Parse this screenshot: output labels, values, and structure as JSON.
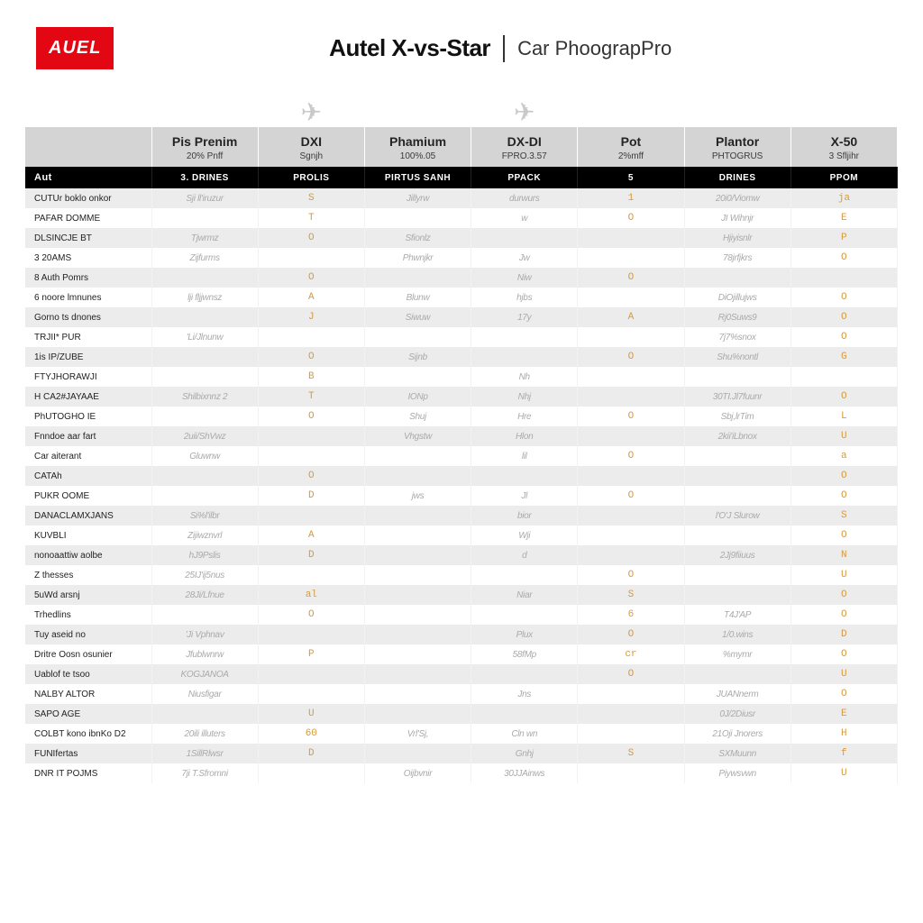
{
  "logo": "AUEL",
  "title_main": "Autel X-vs-Star",
  "title_sub": "Car PhoograpPro",
  "colors": {
    "brand_red": "#e30613",
    "header_gray": "#d4d4d4",
    "black_bar": "#000000",
    "accent_orange": "#d99a3a",
    "row_alt": "#ececec",
    "text_main": "#222222",
    "text_muted": "#888888"
  },
  "table": {
    "drone_icons": [
      "",
      "",
      "✈",
      "",
      "✈",
      "",
      "",
      ""
    ],
    "header1": [
      "",
      "Pis Prenim",
      "DXI",
      "Phamium",
      "DX-DI",
      "Pot",
      "Plantor",
      "X-50"
    ],
    "header2": [
      "",
      "20% Pnff",
      "Sgnjh",
      "100%.05",
      "FPRO.3.57",
      "2%mff",
      "PHTOGRUS",
      "3 Sfljihr"
    ],
    "header3": [
      "Aut",
      "3. DRINES",
      "PROLIS",
      "PIRTUS SANH",
      "PPACK",
      "5",
      "DRINES",
      "PPOM"
    ],
    "rows": [
      {
        "label": "CUTUr boklo onkor",
        "cells": [
          "Sji ll'iruzur",
          "S",
          "Jillyrw",
          "durwurs",
          "1",
          "20i0/Viomw",
          "ja"
        ]
      },
      {
        "label": "PAFAR DOMME",
        "cells": [
          "",
          "T",
          "",
          "w",
          "O",
          "JI Wihnjr",
          "E"
        ]
      },
      {
        "label": "DLSINCJE BT",
        "cells": [
          "Tjwrmz",
          "O",
          "Sfionlz",
          "",
          "",
          "Hjiyisnlr",
          "P"
        ]
      },
      {
        "label": "3 20AMS",
        "cells": [
          "Zijfurms",
          "",
          "Phwnjkr",
          "Jw",
          "",
          "78jrfjkrs",
          "O"
        ]
      },
      {
        "label": "8 Auth Pomrs",
        "cells": [
          "",
          "O",
          "",
          "Niw",
          "O",
          "",
          ""
        ]
      },
      {
        "label": "6 noore lmnunes",
        "cells": [
          "lji fljjwnsz",
          "A",
          "Blunw",
          "hjbs",
          "",
          "DiOjillujws",
          "O"
        ]
      },
      {
        "label": "Gorno ts dnones",
        "cells": [
          "",
          "J",
          "Siwuw",
          "17y",
          "A",
          "Rj0Suws9",
          "O"
        ]
      },
      {
        "label": "TRJII* PUR",
        "cells": [
          "'Li/Jlnunw",
          "",
          "",
          "",
          "",
          "7j7%snox",
          "O"
        ]
      },
      {
        "label": "1is IP/ZUBE",
        "cells": [
          "",
          "O",
          "Sijnb",
          "",
          "O",
          "Shu%nontl",
          "G"
        ]
      },
      {
        "label": "FTYJHORAWJI",
        "cells": [
          "",
          "B",
          "",
          "Nh",
          "",
          "",
          ""
        ]
      },
      {
        "label": "H CA2#JAYAAE",
        "cells": [
          "Shilbixnnz 2",
          "T",
          "IONp",
          "Nhj",
          "",
          "30TI.Jl7fuunr",
          "O"
        ]
      },
      {
        "label": "PhUTOGHO IE",
        "cells": [
          "",
          "O",
          "Shuj",
          "Hre",
          "O",
          "Sbj,lrTim",
          "L"
        ]
      },
      {
        "label": "Fnndoe aar fart",
        "cells": [
          "2uii/ShVwz",
          "",
          "Vhgstw",
          "Hlon",
          "",
          "2kii'iLbnox",
          "U"
        ]
      },
      {
        "label": "Car aiterant",
        "cells": [
          "Gluwnw",
          "",
          "",
          "lil",
          "O",
          "",
          "a"
        ]
      },
      {
        "label": "CATAh",
        "cells": [
          "",
          "O",
          "",
          "",
          "",
          "",
          "O"
        ]
      },
      {
        "label": "PUKR OOME",
        "cells": [
          "",
          "D",
          "jws",
          "Jl",
          "O",
          "",
          "O"
        ]
      },
      {
        "label": "DANACLAMXJANS",
        "cells": [
          "Si%l'ilbr",
          "",
          "",
          "bior",
          "",
          "l'O'J Slurow",
          "S"
        ]
      },
      {
        "label": "KUVBLI",
        "cells": [
          "Zijiwznvrl",
          "A",
          "",
          "Wji",
          "",
          "",
          "O"
        ]
      },
      {
        "label": "nonoaattiw aolbe",
        "cells": [
          "hJ9Pslis",
          "D",
          "",
          "d",
          "",
          "2Jj9fiiuus",
          "N"
        ]
      },
      {
        "label": "Z thesses",
        "cells": [
          "25IJ'ij5nus",
          "",
          "",
          "",
          "O",
          "",
          "U"
        ]
      },
      {
        "label": "5uWd arsnj",
        "cells": [
          "28Ji/Lfnue",
          "al",
          "",
          "Niar",
          "S",
          "",
          "O"
        ]
      },
      {
        "label": "Trhedlins",
        "cells": [
          "",
          "O",
          "",
          "",
          "6",
          "T4J'AP",
          "O"
        ]
      },
      {
        "label": "Tuy aseid no",
        "cells": [
          "'Ji Vphnav",
          "",
          "",
          "Plux",
          "O",
          "1/0.wins",
          "D"
        ]
      },
      {
        "label": "Dritre Oosn osunier",
        "cells": [
          "Jfublwnrw",
          "P",
          "",
          "58fMp",
          "cr",
          "%mymr",
          "O"
        ]
      },
      {
        "label": "Uablof te tsoo",
        "cells": [
          "KOGJANOA",
          "",
          "",
          "",
          "O",
          "",
          "U"
        ]
      },
      {
        "label": "NALBY ALTOR",
        "cells": [
          "Niusfigar",
          "",
          "",
          "Jns",
          "",
          "JUANnerm",
          "O"
        ]
      },
      {
        "label": "SAPO AGE",
        "cells": [
          "",
          "U",
          "",
          "",
          "",
          "0J/2Diusr",
          "E"
        ]
      },
      {
        "label": "COLBT kono ibnKo D2",
        "cells": [
          "20ili illuters",
          "60",
          "Vrl'Sj,",
          "Cln wn",
          "",
          "21Oji Jnorers",
          "H"
        ]
      },
      {
        "label": "FUNIfertas",
        "cells": [
          "1SillRlwsr",
          "D",
          "",
          "Gnhj",
          "S",
          "SXMuunn",
          "f"
        ]
      },
      {
        "label": "DNR IT POJMS",
        "cells": [
          "7ji T.Sfromni",
          "",
          "Oijbvnir",
          "30JJAinws",
          "",
          "Piywsvwn",
          "U"
        ]
      }
    ]
  }
}
